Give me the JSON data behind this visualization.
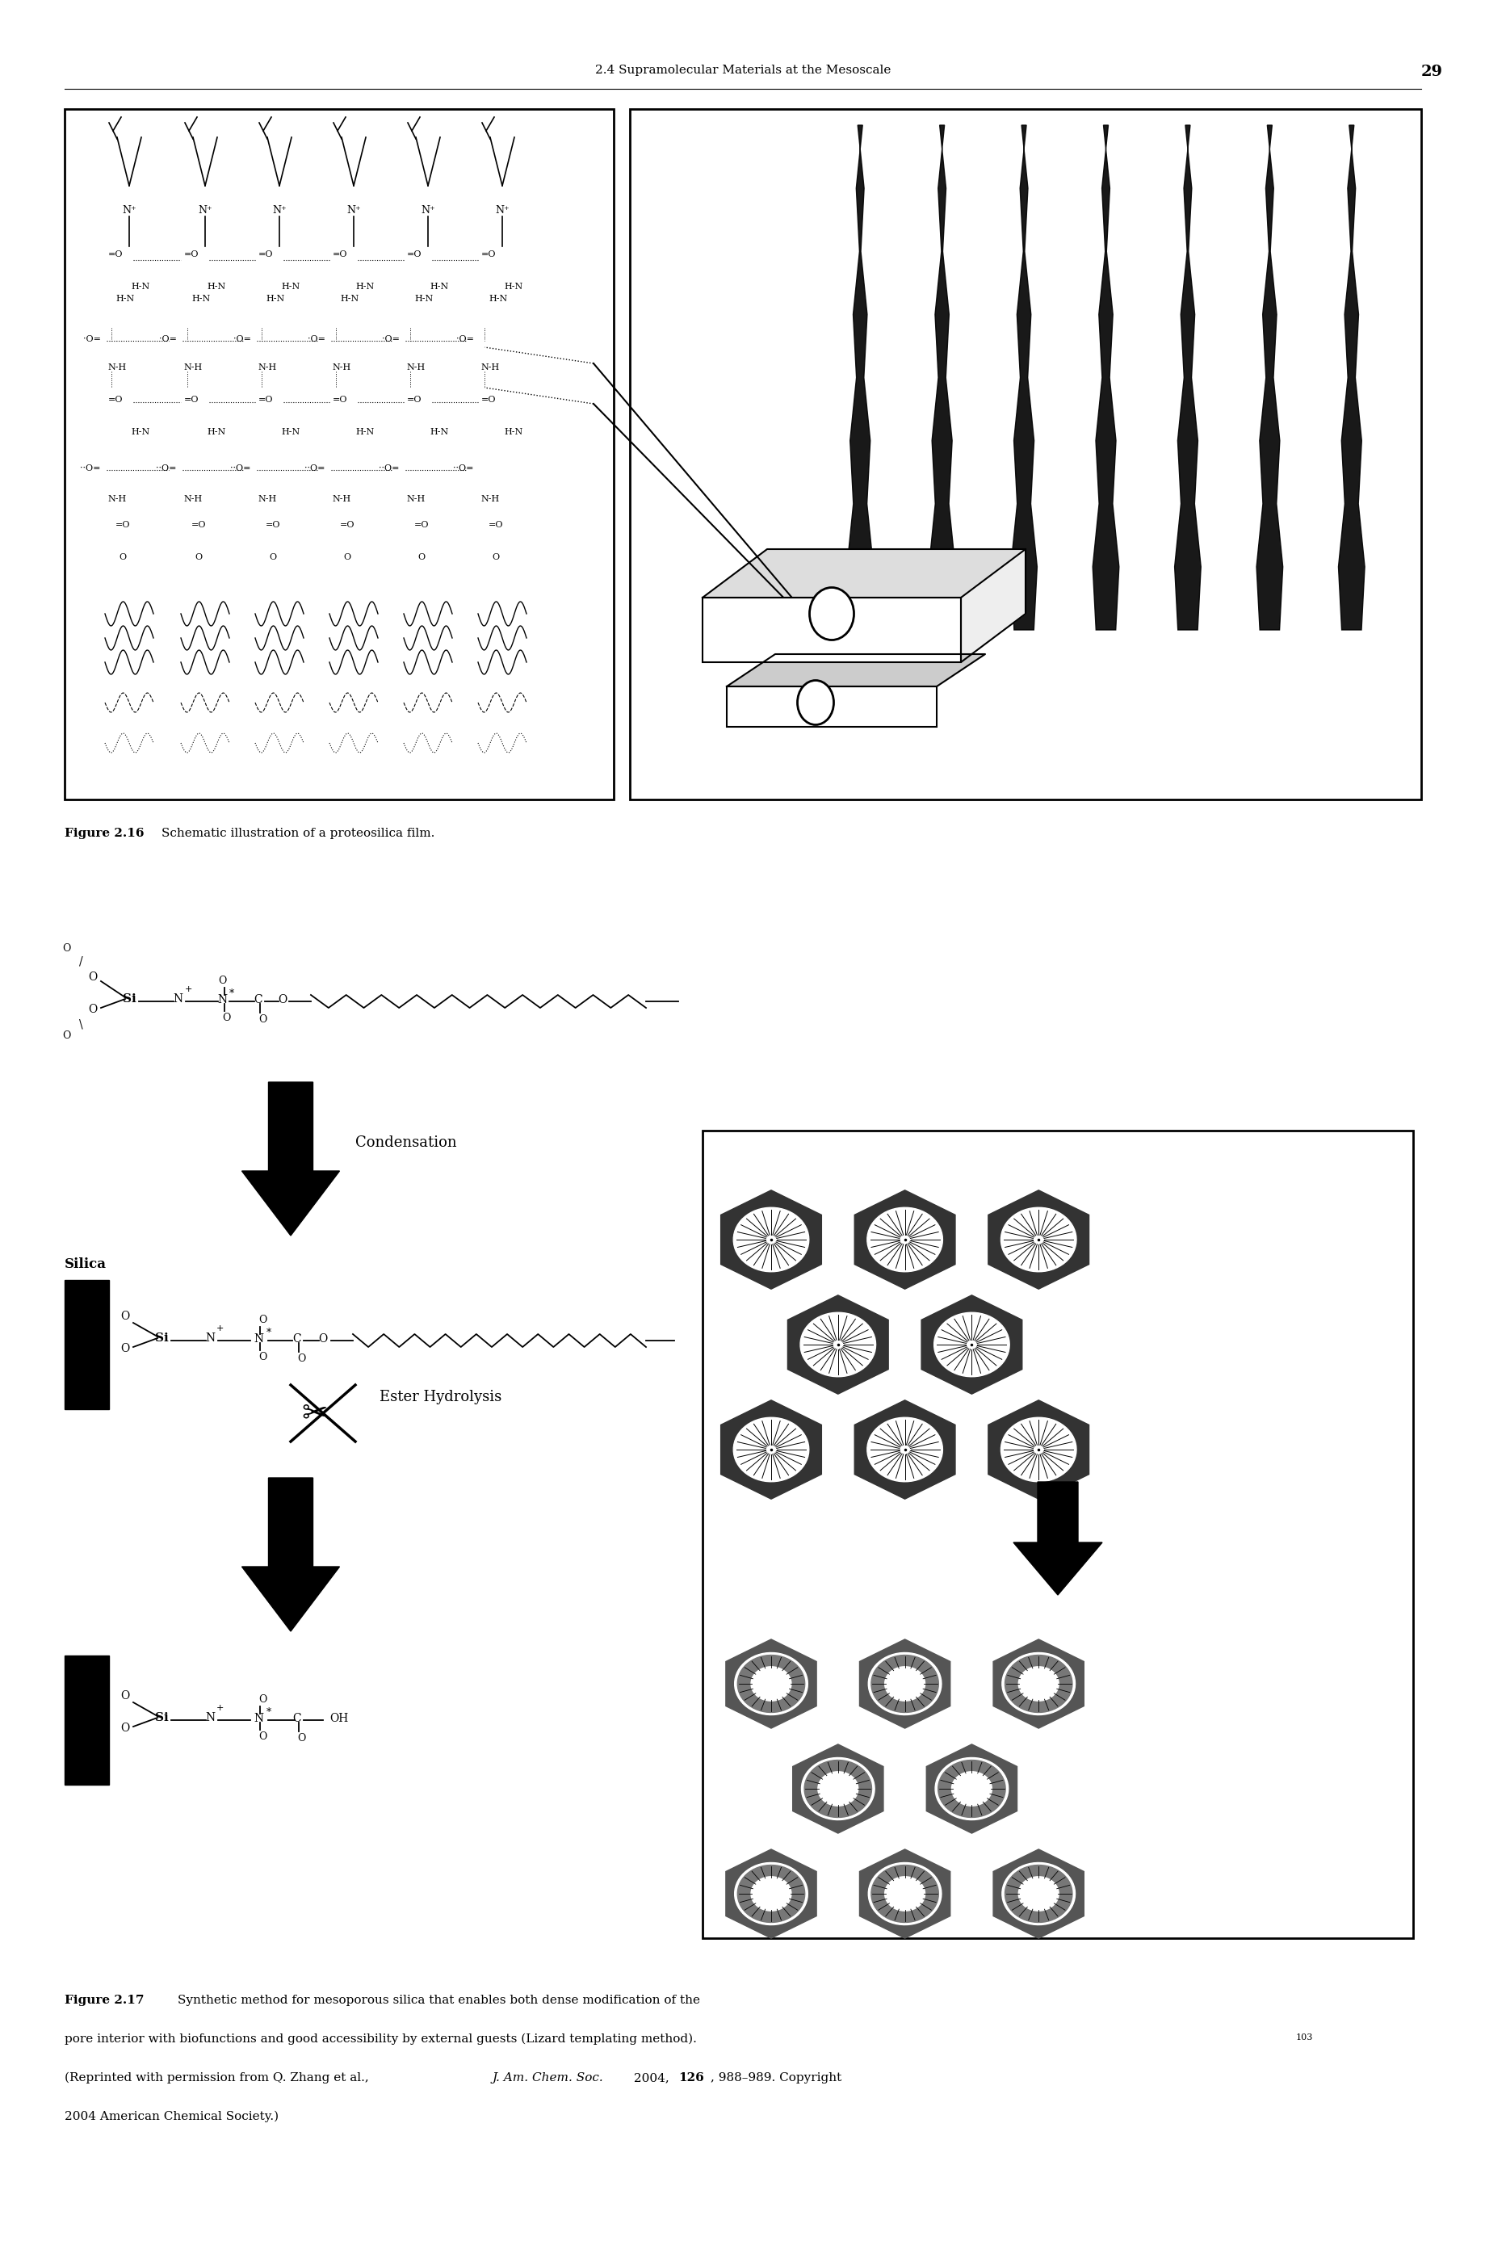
{
  "page_width": 18.4,
  "page_height": 27.75,
  "bg_color": "#ffffff",
  "header_text": "2.4 Supramolecular Materials at the Mesoscale",
  "header_page": "29",
  "header_fontsize": 11,
  "fig216_caption_bold": "Figure 2.16",
  "fig216_caption_rest": "    Schematic illustration of a proteosilica film.",
  "fig216_caption_fontsize": 11,
  "fig217_caption_bold": "Figure 2.17",
  "fig217_caption_rest": "    Synthetic method for mesoporous silica that enables both dense modification of the",
  "fig217_caption_line2": "pore interior with biofunctions and good accessibility by external guests (Lizard templating method).",
  "fig217_sup": "103",
  "fig217_caption_line3a": "(Reprinted with permission from Q. Zhang et al., ",
  "fig217_caption_italic": "J. Am. Chem. Soc.",
  "fig217_caption_line3b": " 2004, ",
  "fig217_caption_bold2": "126",
  "fig217_caption_line3c": ", 988–989. Copyright",
  "fig217_caption_line4": "2004 American Chemical Society.)",
  "caption_fontsize": 11
}
